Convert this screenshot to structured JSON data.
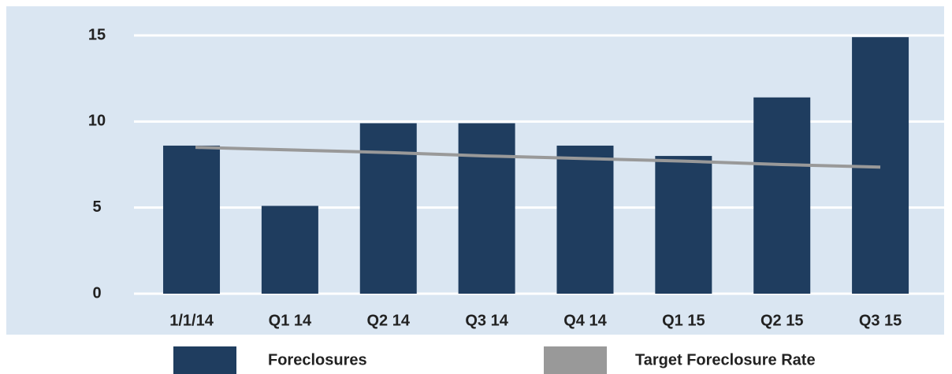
{
  "chart_data": {
    "type": "bar",
    "categories": [
      "1/1/14",
      "Q1 14",
      "Q2 14",
      "Q3 14",
      "Q4 14",
      "Q1 15",
      "Q2 15",
      "Q3 15"
    ],
    "series": [
      {
        "name": "Foreclosures",
        "color": "#1f3d5f",
        "type": "bar",
        "values": [
          8.6,
          5.1,
          9.9,
          9.9,
          8.6,
          8.0,
          11.4,
          14.9
        ]
      },
      {
        "name": "Target Foreclosure Rate",
        "color": "#999999",
        "type": "line",
        "values": [
          8.5,
          8.35,
          8.2,
          8.0,
          7.85,
          7.7,
          7.5,
          7.35
        ]
      }
    ],
    "ylim": [
      0,
      15
    ],
    "yticks": [
      0,
      5,
      10,
      15
    ],
    "grid": true,
    "legend": "bottom"
  }
}
